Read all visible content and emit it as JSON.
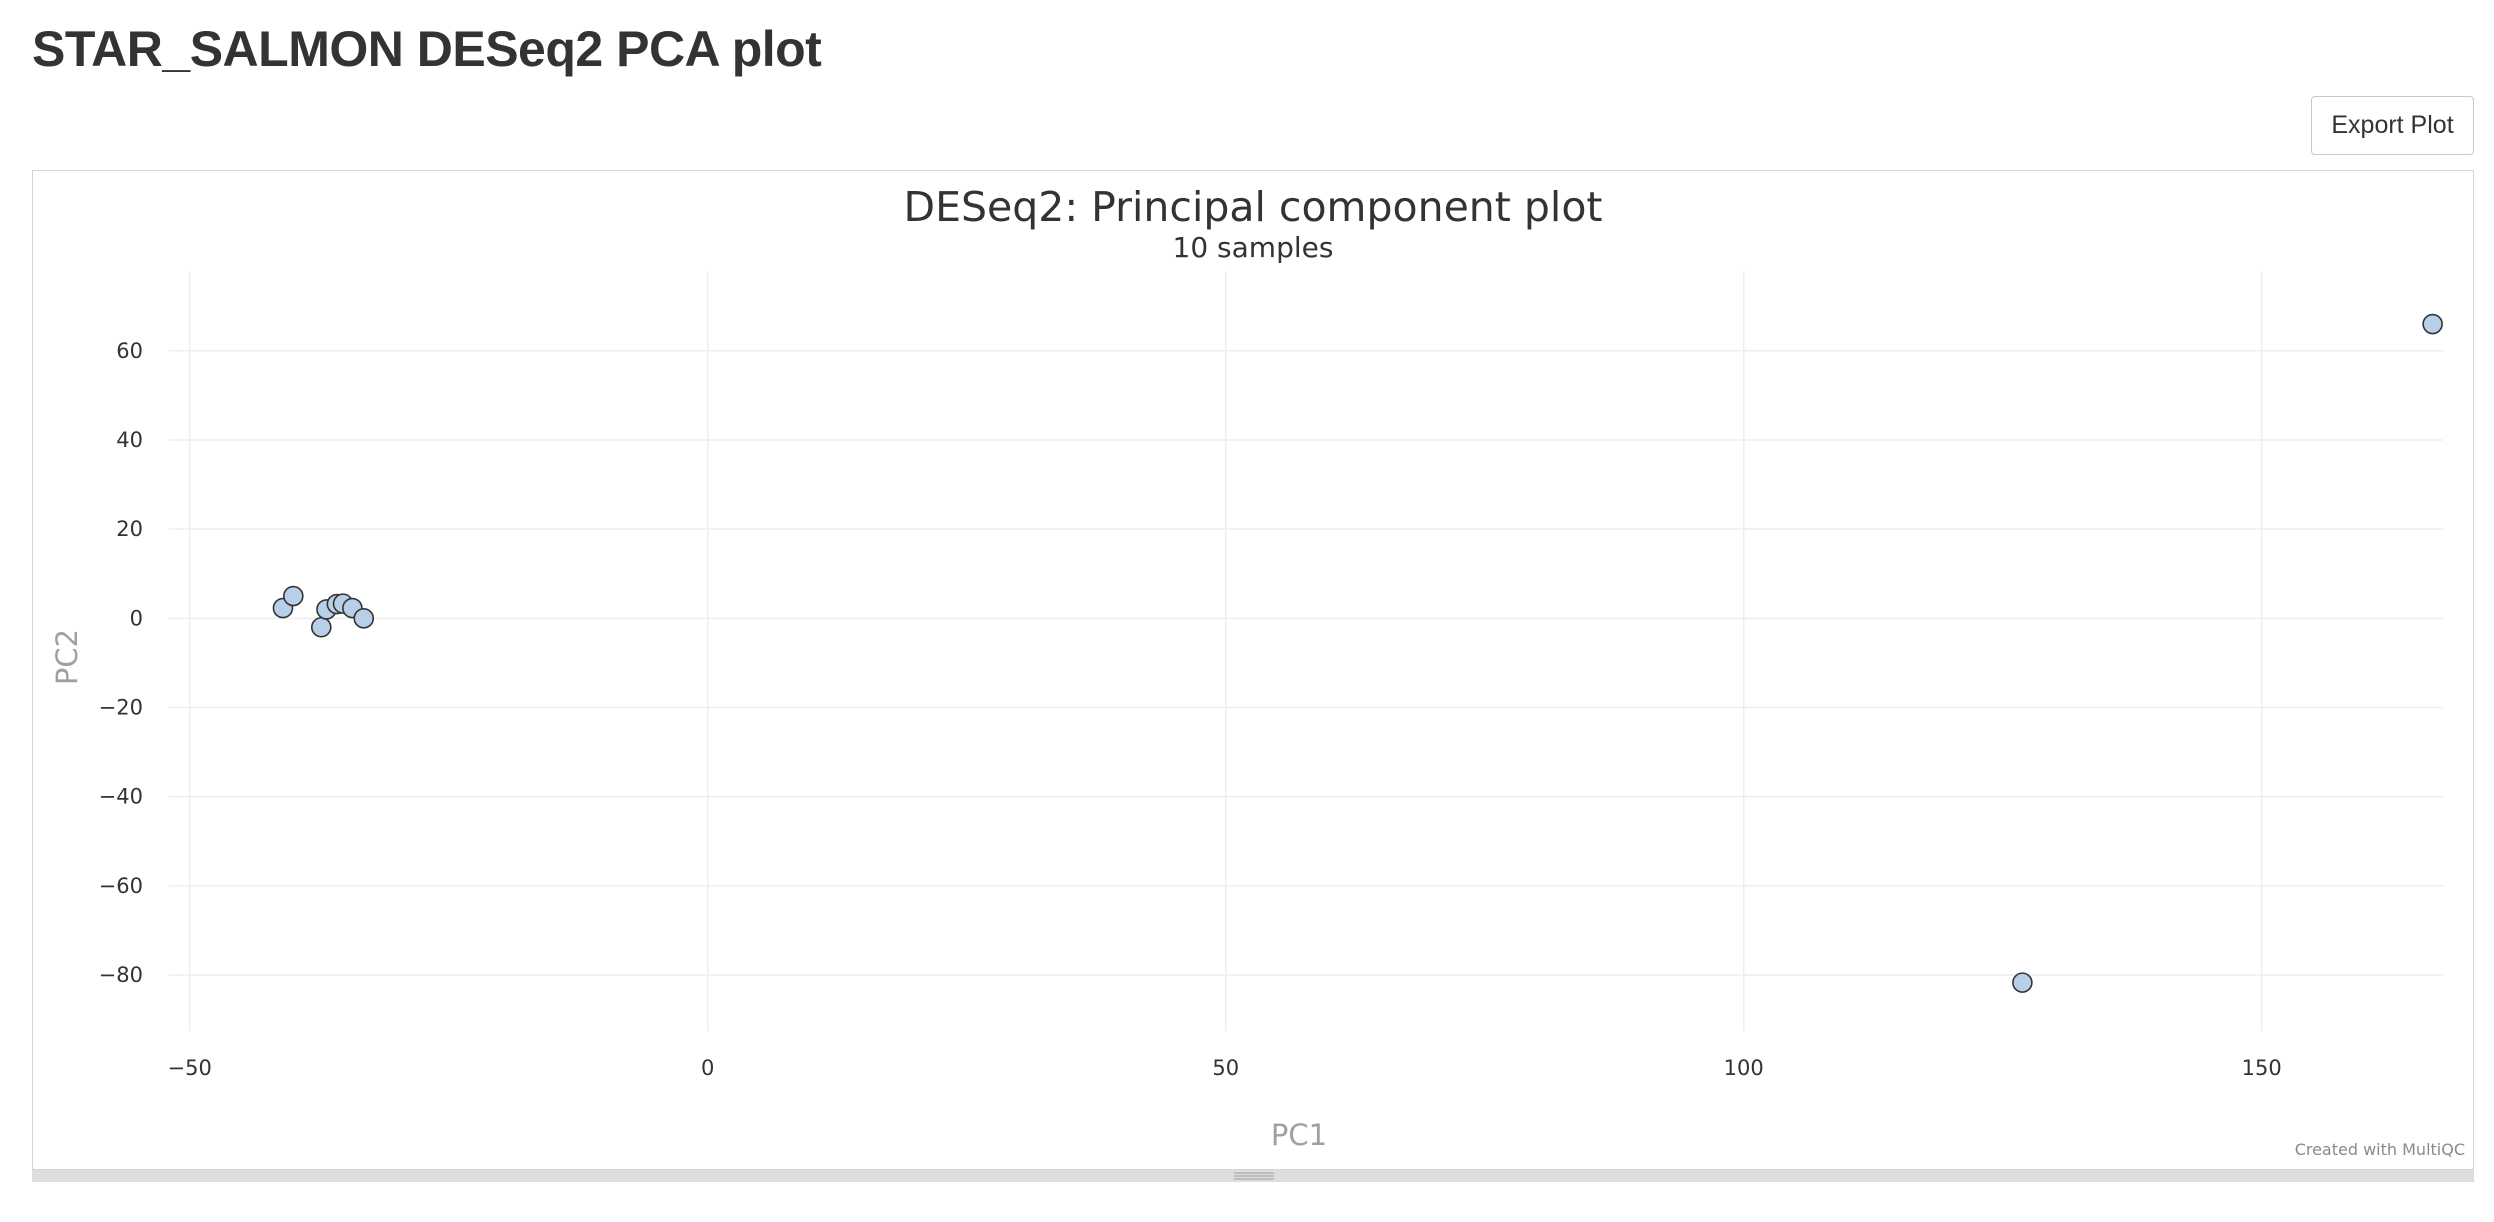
{
  "page": {
    "title": "STAR_SALMON DESeq2 PCA plot"
  },
  "toolbar": {
    "export_label": "Export Plot"
  },
  "credit": "Created with MultiQC",
  "colors": {
    "point_fill": "#b7cfe9",
    "point_stroke": "#333333",
    "grid": "#eeeeee",
    "axis_title": "#a0a0a0",
    "title": "#333333"
  },
  "chart_data": {
    "type": "scatter",
    "title": "DESeq2: Principal component plot",
    "subtitle": "10 samples",
    "xlabel": "PC1",
    "ylabel": "PC2",
    "xlim": [
      -52,
      167.5
    ],
    "ylim": [
      -93,
      77
    ],
    "xticks": [
      -50,
      0,
      50,
      100,
      150
    ],
    "yticks": [
      60,
      40,
      20,
      0,
      -20,
      -40,
      -60,
      -80
    ],
    "grid": true,
    "legend": "none",
    "points": [
      {
        "x": -41,
        "y": 2.3
      },
      {
        "x": -40,
        "y": 5
      },
      {
        "x": -37.3,
        "y": -2
      },
      {
        "x": -36.8,
        "y": 2
      },
      {
        "x": -35.8,
        "y": 3.2
      },
      {
        "x": -35.2,
        "y": 3.3
      },
      {
        "x": -34.3,
        "y": 2.3
      },
      {
        "x": -33.2,
        "y": 0
      },
      {
        "x": 126.9,
        "y": -81.7
      },
      {
        "x": 166.5,
        "y": 66
      }
    ]
  }
}
